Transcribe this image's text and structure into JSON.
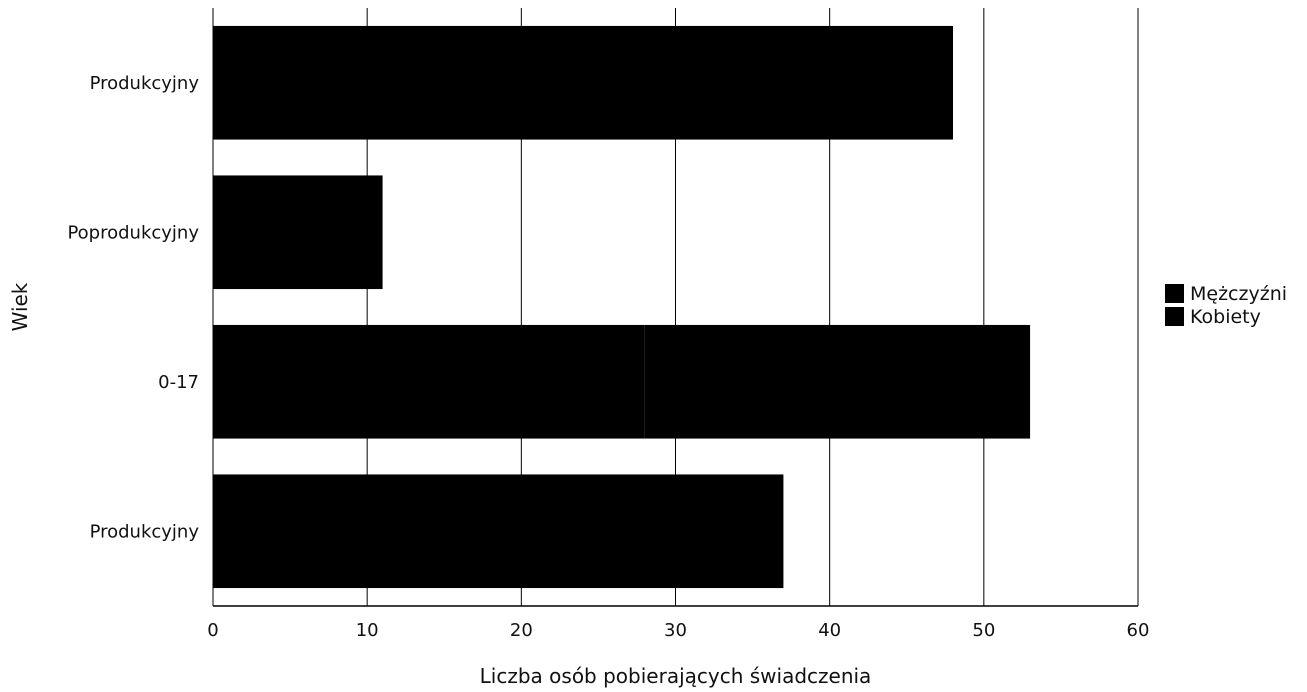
{
  "chart_data": {
    "type": "bar",
    "orientation": "horizontal",
    "categories": [
      "Produkcyjny",
      "Poprodukcyjny",
      "0-17",
      "Produkcyjny"
    ],
    "series": [
      {
        "name": "Mężczyźni",
        "values": [
          48,
          11,
          28,
          37
        ]
      },
      {
        "name": "Kobiety",
        "values": [
          0,
          0,
          25,
          0
        ]
      }
    ],
    "stacked": true,
    "title": "",
    "xlabel": "Liczba osób pobierających świadczenia",
    "ylabel": "Wiek",
    "xlim": [
      0,
      60
    ],
    "xticks": [
      0,
      10,
      20,
      30,
      40,
      50,
      60
    ],
    "grid": "vertical",
    "legend_position": "right",
    "colors": {
      "bars": "#000000",
      "grid": "#000000",
      "text": "#111111",
      "background": "#ffffff"
    }
  }
}
